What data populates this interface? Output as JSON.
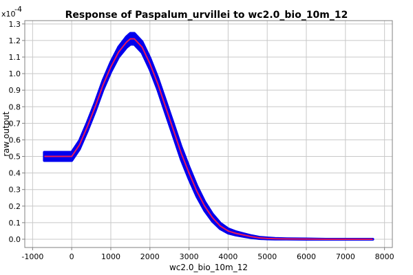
{
  "chart_data": {
    "type": "line",
    "title": "Response of Paspalum_urvillei to wc2.0_bio_10m_12",
    "xlabel": "wc2.0_bio_10m_12",
    "ylabel": "raw output",
    "y_multiplier_base": "x10",
    "y_multiplier_exp": "-4",
    "xlim": [
      -1200,
      8200
    ],
    "ylim": [
      -0.05,
      1.32
    ],
    "x_ticks": [
      -1000,
      0,
      1000,
      2000,
      3000,
      4000,
      5000,
      6000,
      7000,
      8000
    ],
    "x_tick_labels": [
      "-1000",
      "0",
      "1000",
      "2000",
      "3000",
      "4000",
      "5000",
      "6000",
      "7000",
      "8000"
    ],
    "y_ticks": [
      0.0,
      0.1,
      0.2,
      0.3,
      0.4,
      0.5,
      0.6,
      0.7,
      0.8,
      0.9,
      1.0,
      1.1,
      1.2,
      1.3
    ],
    "y_tick_labels": [
      "0.0",
      "0.1",
      "0.2",
      "0.3",
      "0.4",
      "0.5",
      "0.6",
      "0.7",
      "0.8",
      "0.9",
      "1.0",
      "1.1",
      "1.2",
      "1.3"
    ],
    "grid": true,
    "colors": {
      "mean": "#e8195a",
      "band": "#0000ee"
    },
    "series": [
      {
        "x": [
          -700,
          0,
          200,
          400,
          600,
          800,
          1000,
          1200,
          1400,
          1500,
          1600,
          1800,
          2000,
          2200,
          2400,
          2600,
          2800,
          3000,
          3200,
          3400,
          3600,
          3800,
          4000,
          4200,
          4400,
          4600,
          4800,
          5000,
          5200,
          5500,
          6000,
          6500,
          7000,
          7700
        ],
        "y": [
          0.5,
          0.5,
          0.57,
          0.68,
          0.8,
          0.93,
          1.04,
          1.13,
          1.19,
          1.21,
          1.21,
          1.16,
          1.06,
          0.94,
          0.8,
          0.66,
          0.52,
          0.4,
          0.29,
          0.2,
          0.13,
          0.08,
          0.05,
          0.035,
          0.025,
          0.015,
          0.008,
          0.005,
          0.003,
          0.002,
          0.001,
          0.0,
          0.0,
          0.0
        ],
        "band_half_width": [
          0.025,
          0.025,
          0.025,
          0.026,
          0.027,
          0.028,
          0.029,
          0.03,
          0.032,
          0.033,
          0.033,
          0.033,
          0.034,
          0.036,
          0.038,
          0.038,
          0.038,
          0.036,
          0.032,
          0.027,
          0.022,
          0.017,
          0.013,
          0.01,
          0.008,
          0.006,
          0.004,
          0.003,
          0.002,
          0.001,
          0.001,
          0.0,
          0.0,
          0.0
        ]
      }
    ]
  }
}
